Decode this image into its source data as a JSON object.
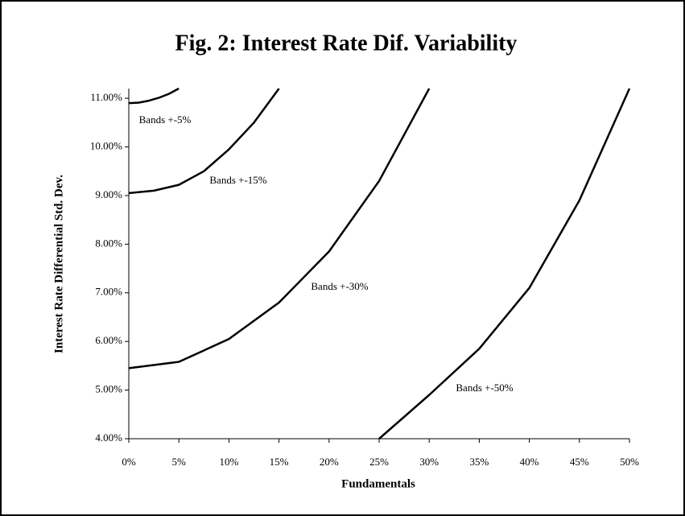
{
  "chart_data": {
    "type": "line",
    "title": "Fig. 2: Interest Rate Dif. Variability",
    "x_label": "Fundamentals",
    "y_label": "Interest Rate Differential Std. Dev.",
    "xlim": [
      0,
      50
    ],
    "ylim": [
      4,
      11.2
    ],
    "xticks": [
      {
        "value": 0,
        "label": "0%"
      },
      {
        "value": 5,
        "label": "5%"
      },
      {
        "value": 10,
        "label": "10%"
      },
      {
        "value": 15,
        "label": "15%"
      },
      {
        "value": 20,
        "label": "20%"
      },
      {
        "value": 25,
        "label": "25%"
      },
      {
        "value": 30,
        "label": "30%"
      },
      {
        "value": 35,
        "label": "35%"
      },
      {
        "value": 40,
        "label": "40%"
      },
      {
        "value": 45,
        "label": "45%"
      },
      {
        "value": 50,
        "label": "50%"
      }
    ],
    "yticks": [
      {
        "value": 4,
        "label": "4.00%"
      },
      {
        "value": 5,
        "label": "5.00%"
      },
      {
        "value": 6,
        "label": "6.00%"
      },
      {
        "value": 7,
        "label": "7.00%"
      },
      {
        "value": 8,
        "label": "8.00%"
      },
      {
        "value": 9,
        "label": "9.00%"
      },
      {
        "value": 10,
        "label": "10.00%"
      },
      {
        "value": 11,
        "label": "11.00%"
      }
    ],
    "series": [
      {
        "name": "Bands +-5%",
        "color": "#000000",
        "x": [
          0,
          1,
          2,
          3,
          4,
          5
        ],
        "values": [
          10.9,
          10.91,
          10.95,
          11.01,
          11.09,
          11.2
        ]
      },
      {
        "name": "Bands +-15%",
        "color": "#000000",
        "x": [
          0,
          2.5,
          5,
          7.5,
          10,
          12.5,
          15
        ],
        "values": [
          9.05,
          9.1,
          9.22,
          9.5,
          9.95,
          10.5,
          11.2
        ]
      },
      {
        "name": "Bands +-30%",
        "color": "#000000",
        "x": [
          0,
          5,
          10,
          15,
          20,
          25,
          30
        ],
        "values": [
          5.45,
          5.58,
          6.05,
          6.8,
          7.85,
          9.3,
          11.2
        ]
      },
      {
        "name": "Bands +-50%",
        "color": "#000000",
        "x": [
          25,
          30,
          35,
          40,
          45,
          50
        ],
        "values": [
          4,
          4.9,
          5.85,
          7.1,
          8.9,
          11.2
        ]
      }
    ]
  }
}
